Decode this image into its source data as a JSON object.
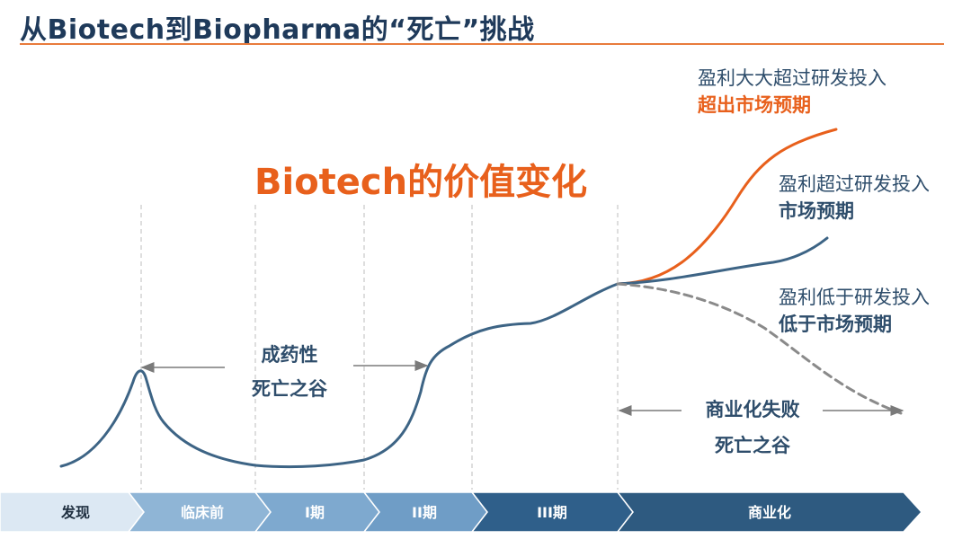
{
  "header": {
    "title": "从Biotech到Biopharma的“死亡”挑战"
  },
  "chart": {
    "title": "Biotech的价值变化",
    "outcomes": [
      {
        "line1": "盈利大大超过研发投入",
        "line2": "超出市场预期",
        "color": "#e8601c"
      },
      {
        "line1": "盈利超过研发投入",
        "line2": "市场预期",
        "color": "#2e5a80"
      },
      {
        "line1": "盈利低于研发投入",
        "line2": "低于市场预期",
        "color": "#8a8a8a"
      }
    ],
    "valleys": [
      {
        "line1": "成药性",
        "line2": "死亡之谷"
      },
      {
        "line1": "商业化失败",
        "line2": "死亡之谷"
      }
    ]
  },
  "stages": [
    {
      "label": "发现",
      "fill": "#dce8f3",
      "text_color": "#1f2f40"
    },
    {
      "label": "临床前",
      "fill": "#8fb5d6",
      "text_color": "#ffffff"
    },
    {
      "label": "I期",
      "fill": "#7ea9cf",
      "text_color": "#ffffff"
    },
    {
      "label": "II期",
      "fill": "#6f9dc6",
      "text_color": "#ffffff"
    },
    {
      "label": "III期",
      "fill": "#2f5f8a",
      "text_color": "#ffffff"
    },
    {
      "label": "商业化",
      "fill": "#2e5a80",
      "text_color": "#ffffff"
    }
  ],
  "colors": {
    "accent": "#e8601c",
    "main_curve": "#3d6485",
    "dashed_curve": "#8a8a8a",
    "gridline": "#c8c8c8"
  }
}
